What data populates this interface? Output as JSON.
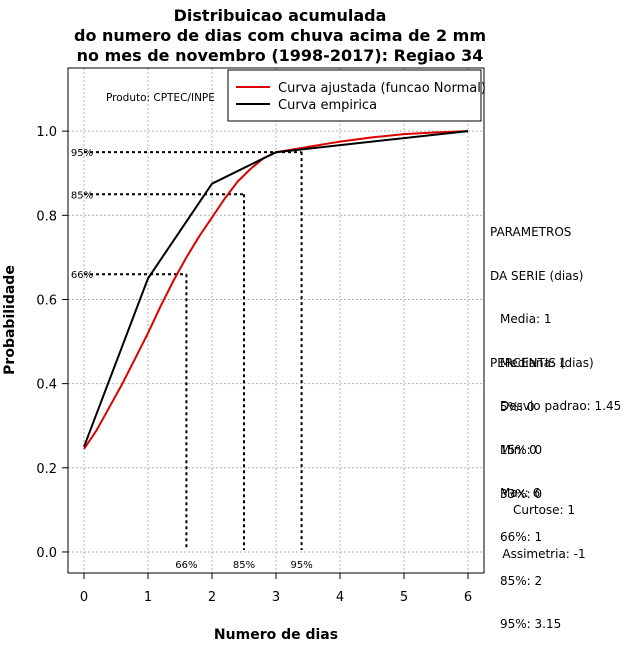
{
  "title_lines": [
    "Distribuicao acumulada",
    "do numero de dias com chuva acima de 2 mm",
    "no mes de novembro (1998-2017): Regiao 34"
  ],
  "product_label": "Produto: CPTEC/INPE",
  "parametros": {
    "heading_1": "PARAMETROS",
    "heading_2": "DA SERIE (dias)",
    "media": "Media: 1",
    "mediana": "Mediana: 1",
    "desvio": "Desvio padrao: 1.45",
    "min": "Min: 0",
    "max": "Max: 6"
  },
  "percentis": {
    "heading": "PERCENTIS (dias)",
    "p5": "5%: 0",
    "p15": "15%: 0",
    "p33": "33%: 0",
    "p66": "66%: 1",
    "p85": "85%: 2",
    "p95": "95%: 3.15"
  },
  "shape": {
    "curtose": "Curtose: 1",
    "assimetria": "Assimetria: -1"
  },
  "chart_data": {
    "type": "line",
    "xlabel": "Numero de dias",
    "ylabel": "Probabilidade",
    "xlim": [
      -0.25,
      6.25
    ],
    "ylim": [
      -0.05,
      1.15
    ],
    "x_ticks": [
      0,
      1,
      2,
      3,
      4,
      5,
      6
    ],
    "y_ticks": [
      0.0,
      0.2,
      0.4,
      0.6,
      0.8,
      1.0
    ],
    "y_tick_labels": [
      "0.0",
      "0.2",
      "0.4",
      "0.6",
      "0.8",
      "1.0"
    ],
    "grid": true,
    "legend_position": "top-right",
    "series": [
      {
        "name": "Curva ajustada (funcao Normal)",
        "color": "#dd0000",
        "x": [
          0,
          0.2,
          0.4,
          0.6,
          0.8,
          1.0,
          1.2,
          1.4,
          1.6,
          1.8,
          2.0,
          2.2,
          2.4,
          2.6,
          2.8,
          3.0,
          3.2,
          3.4,
          3.6,
          3.8,
          4.0,
          4.5,
          5.0,
          5.5,
          6.0
        ],
        "y": [
          0.245,
          0.29,
          0.345,
          0.4,
          0.46,
          0.52,
          0.585,
          0.645,
          0.7,
          0.75,
          0.795,
          0.84,
          0.88,
          0.91,
          0.935,
          0.95,
          0.955,
          0.96,
          0.965,
          0.97,
          0.975,
          0.985,
          0.993,
          0.997,
          1.0
        ]
      },
      {
        "name": "Curva empirica",
        "color": "#000000",
        "x": [
          0,
          1,
          2,
          3,
          6
        ],
        "y": [
          0.25,
          0.65,
          0.875,
          0.95,
          1.0
        ]
      }
    ],
    "percentile_guides": [
      {
        "label": "66%",
        "p": 0.66,
        "x": 1.6
      },
      {
        "label": "85%",
        "p": 0.85,
        "x": 2.5
      },
      {
        "label": "95%",
        "p": 0.95,
        "x": 3.4
      }
    ]
  }
}
